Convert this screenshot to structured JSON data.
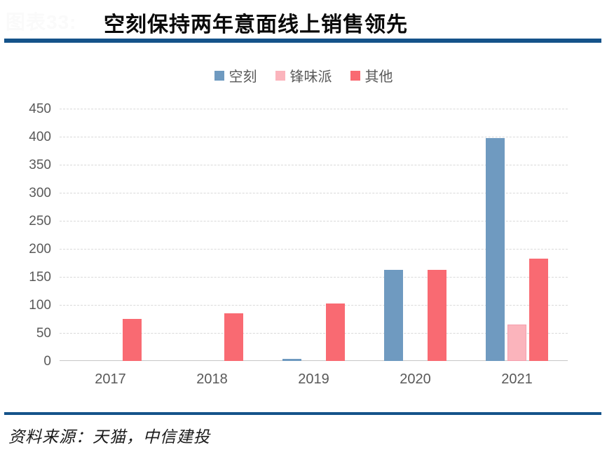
{
  "header": {
    "figure_label": "图表33:",
    "title": "空刻保持两年意面线上销售领先"
  },
  "footer": {
    "source": "资料来源：天猫，中信建投"
  },
  "colors": {
    "accent_rule": "#15538a",
    "grid_line": "#d9d9d9",
    "axis_line": "#c6c6c6",
    "tick_text": "#595959"
  },
  "chart_data": {
    "type": "bar",
    "title": "空刻保持两年意面线上销售领先",
    "categories": [
      "2017",
      "2018",
      "2019",
      "2020",
      "2021"
    ],
    "series": [
      {
        "name": "空刻",
        "color": "#6f9ac0",
        "values": [
          0,
          0,
          4,
          163,
          398
        ]
      },
      {
        "name": "锋味派",
        "color": "#fbb4bc",
        "border_color": "#f59fae",
        "values": [
          0,
          0,
          0,
          0,
          65
        ]
      },
      {
        "name": "其他",
        "color": "#f96a72",
        "values": [
          75,
          85,
          103,
          162,
          182
        ]
      }
    ],
    "xlabel": "",
    "ylabel": "",
    "ylim": [
      0,
      450
    ],
    "ytick_step": 50,
    "grid": true,
    "legend_position": "top"
  }
}
